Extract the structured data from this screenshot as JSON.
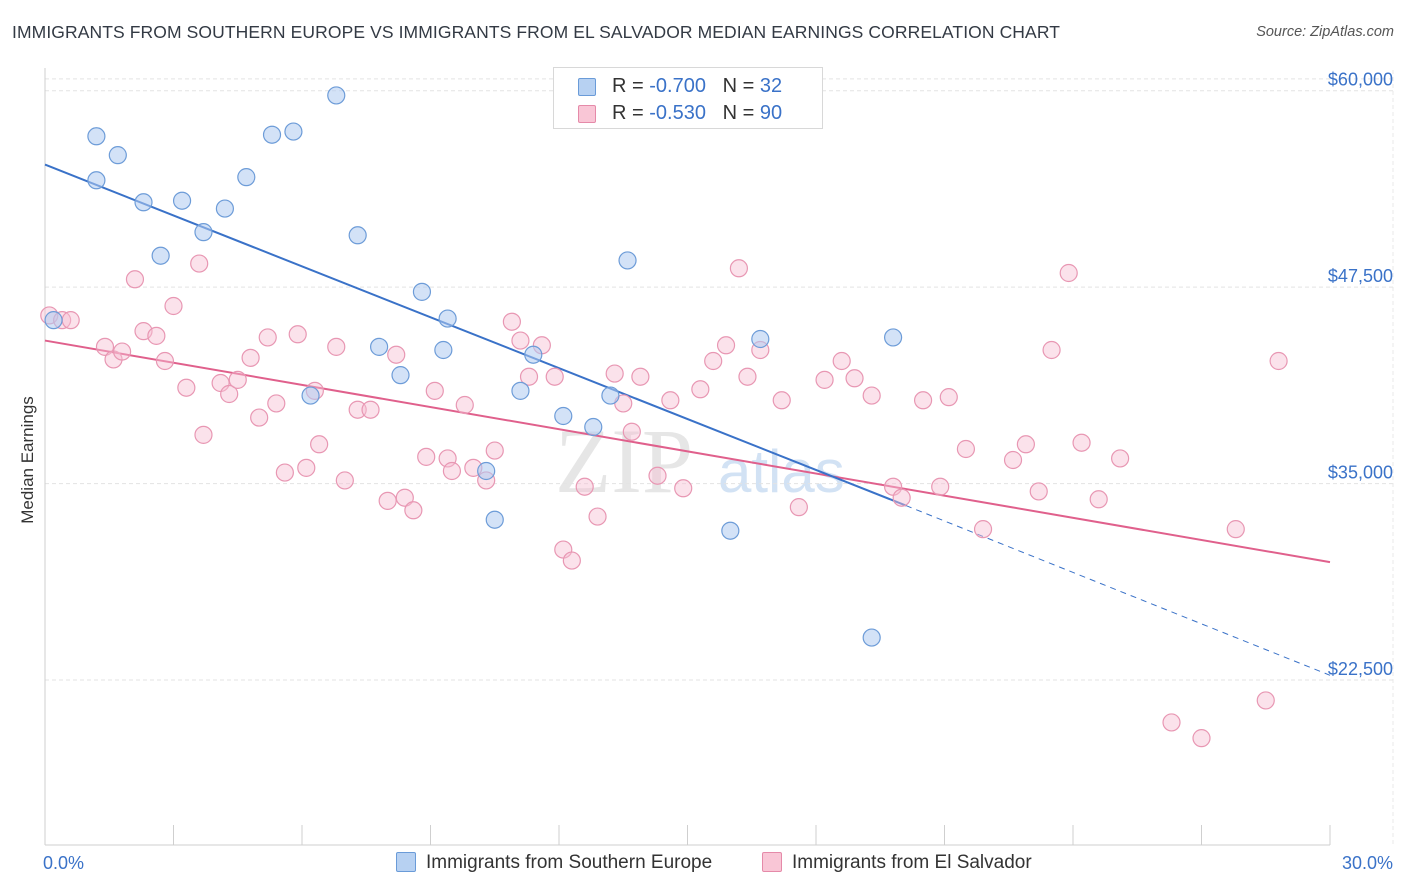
{
  "header": {
    "title": "IMMIGRANTS FROM SOUTHERN EUROPE VS IMMIGRANTS FROM EL SALVADOR MEDIAN EARNINGS CORRELATION CHART",
    "source": "Source: ZipAtlas.com"
  },
  "legend": {
    "row1": {
      "r_label": "R = ",
      "r_value": "-0.700",
      "n_label": "N = ",
      "n_value": "32"
    },
    "row2": {
      "r_label": "R = ",
      "r_value": "-0.530",
      "n_label": "N = ",
      "n_value": "90"
    }
  },
  "watermark": {
    "zip": "ZIP",
    "atlas": "atlas"
  },
  "colors": {
    "blue": "#3a72c8",
    "pink": "#e0608c",
    "blue_fill": "#aecbf0",
    "pink_fill": "#f7c2d3"
  },
  "chart_data": {
    "type": "scatter",
    "title": "IMMIGRANTS FROM SOUTHERN EUROPE VS IMMIGRANTS FROM EL SALVADOR MEDIAN EARNINGS CORRELATION CHART",
    "xlabel": "",
    "ylabel": "Median Earnings",
    "xlim": [
      0,
      30
    ],
    "ylim": [
      12000,
      61000
    ],
    "x_tick_labels": [
      "0.0%",
      "30.0%"
    ],
    "y_ticks": [
      22500,
      35000,
      47500,
      60000
    ],
    "y_tick_labels": [
      "$22,500",
      "$35,000",
      "$47,500",
      "$60,000"
    ],
    "series": [
      {
        "name": "Immigrants from Southern Europe",
        "color": "#3a72c8",
        "R": -0.7,
        "N": 32,
        "trend": {
          "x0": 0,
          "y0": 55300,
          "x1": 20.1,
          "y1": 33600,
          "dash_to_x": 30,
          "dash_to_y": 22800
        },
        "points": [
          [
            0.2,
            45400
          ],
          [
            1.2,
            54300
          ],
          [
            1.2,
            57100
          ],
          [
            1.7,
            55900
          ],
          [
            2.3,
            52900
          ],
          [
            2.7,
            49500
          ],
          [
            3.2,
            53000
          ],
          [
            3.7,
            51000
          ],
          [
            4.2,
            52500
          ],
          [
            4.7,
            54500
          ],
          [
            5.3,
            57200
          ],
          [
            5.8,
            57400
          ],
          [
            6.2,
            40600
          ],
          [
            6.8,
            59700
          ],
          [
            7.3,
            50800
          ],
          [
            7.8,
            43700
          ],
          [
            8.3,
            41900
          ],
          [
            8.8,
            47200
          ],
          [
            9.3,
            43500
          ],
          [
            9.4,
            45500
          ],
          [
            10.3,
            35800
          ],
          [
            10.5,
            32700
          ],
          [
            11.1,
            40900
          ],
          [
            11.4,
            43200
          ],
          [
            12.1,
            39300
          ],
          [
            12.8,
            38600
          ],
          [
            13.2,
            40600
          ],
          [
            13.6,
            49200
          ],
          [
            16.0,
            32000
          ],
          [
            16.7,
            44200
          ],
          [
            19.3,
            25200
          ],
          [
            19.8,
            44300
          ]
        ]
      },
      {
        "name": "Immigrants from El Salvador",
        "color": "#e0608c",
        "R": -0.53,
        "N": 90,
        "trend": {
          "x0": 0,
          "y0": 44100,
          "x1": 30,
          "y1": 30000
        },
        "points": [
          [
            0.1,
            45700
          ],
          [
            0.4,
            45400
          ],
          [
            0.6,
            45400
          ],
          [
            1.4,
            43700
          ],
          [
            1.6,
            42900
          ],
          [
            1.8,
            43400
          ],
          [
            2.1,
            48000
          ],
          [
            2.3,
            44700
          ],
          [
            2.6,
            44400
          ],
          [
            2.8,
            42800
          ],
          [
            3.0,
            46300
          ],
          [
            3.3,
            41100
          ],
          [
            3.6,
            49000
          ],
          [
            3.7,
            38100
          ],
          [
            4.1,
            41400
          ],
          [
            4.3,
            40700
          ],
          [
            4.5,
            41600
          ],
          [
            4.8,
            43000
          ],
          [
            5.0,
            39200
          ],
          [
            5.2,
            44300
          ],
          [
            5.4,
            40100
          ],
          [
            5.6,
            35700
          ],
          [
            5.9,
            44500
          ],
          [
            6.1,
            36000
          ],
          [
            6.3,
            40900
          ],
          [
            6.4,
            37500
          ],
          [
            6.8,
            43700
          ],
          [
            7.0,
            35200
          ],
          [
            7.3,
            39700
          ],
          [
            7.6,
            39700
          ],
          [
            8.0,
            33900
          ],
          [
            8.2,
            43200
          ],
          [
            8.4,
            34100
          ],
          [
            8.6,
            33300
          ],
          [
            8.9,
            36700
          ],
          [
            9.1,
            40900
          ],
          [
            9.4,
            36600
          ],
          [
            9.5,
            35800
          ],
          [
            9.8,
            40000
          ],
          [
            10.0,
            36000
          ],
          [
            10.3,
            35200
          ],
          [
            10.5,
            37100
          ],
          [
            10.9,
            45300
          ],
          [
            11.1,
            44100
          ],
          [
            11.3,
            41800
          ],
          [
            11.6,
            43800
          ],
          [
            11.9,
            41800
          ],
          [
            12.1,
            30800
          ],
          [
            12.3,
            30100
          ],
          [
            12.6,
            34800
          ],
          [
            12.9,
            32900
          ],
          [
            13.3,
            42000
          ],
          [
            13.5,
            40100
          ],
          [
            13.7,
            38300
          ],
          [
            13.9,
            41800
          ],
          [
            14.3,
            35500
          ],
          [
            14.6,
            40300
          ],
          [
            14.9,
            34700
          ],
          [
            15.3,
            41000
          ],
          [
            15.6,
            42800
          ],
          [
            15.9,
            43800
          ],
          [
            16.2,
            48700
          ],
          [
            16.4,
            41800
          ],
          [
            16.7,
            43500
          ],
          [
            17.2,
            40300
          ],
          [
            17.6,
            33500
          ],
          [
            18.2,
            41600
          ],
          [
            18.6,
            42800
          ],
          [
            18.9,
            41700
          ],
          [
            19.3,
            40600
          ],
          [
            19.8,
            34800
          ],
          [
            20.0,
            34100
          ],
          [
            20.5,
            40300
          ],
          [
            20.9,
            34800
          ],
          [
            21.1,
            40500
          ],
          [
            21.5,
            37200
          ],
          [
            21.9,
            32100
          ],
          [
            22.6,
            36500
          ],
          [
            22.9,
            37500
          ],
          [
            23.2,
            34500
          ],
          [
            23.5,
            43500
          ],
          [
            23.9,
            48400
          ],
          [
            24.2,
            37600
          ],
          [
            24.6,
            34000
          ],
          [
            25.1,
            36600
          ],
          [
            26.3,
            19800
          ],
          [
            27.0,
            18800
          ],
          [
            27.8,
            32100
          ],
          [
            28.5,
            21200
          ],
          [
            28.8,
            42800
          ]
        ]
      }
    ]
  },
  "bottom_legend": {
    "item1": "Immigrants from Southern Europe",
    "item2": "Immigrants from El Salvador"
  }
}
